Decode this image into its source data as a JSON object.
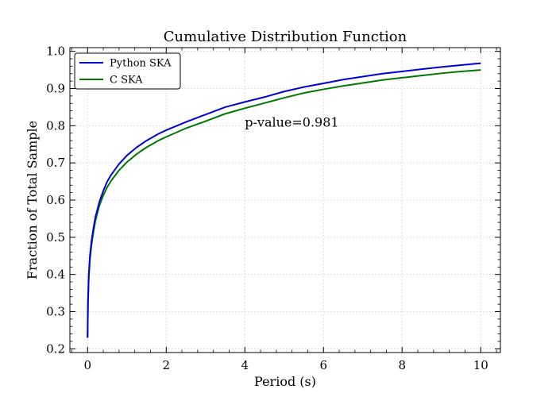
{
  "chart_data": {
    "type": "line",
    "title": "Cumulative Distribution Function",
    "xlabel": "Period (s)",
    "ylabel": "Fraction of Total Sample",
    "xlim": [
      -0.45,
      10.5
    ],
    "ylim": [
      0.19,
      1.01
    ],
    "xticks": [
      0,
      2,
      4,
      6,
      8,
      10
    ],
    "yticks": [
      0.2,
      0.3,
      0.4,
      0.5,
      0.6,
      0.7,
      0.8,
      0.9,
      1.0
    ],
    "xtick_labels": [
      "0",
      "2",
      "4",
      "6",
      "8",
      "10"
    ],
    "ytick_labels": [
      "0.2",
      "0.3",
      "0.4",
      "0.5",
      "0.6",
      "0.7",
      "0.8",
      "0.9",
      "1.0"
    ],
    "grid": true,
    "legend_position": "top-left",
    "annotation": {
      "text": "p-value=0.981",
      "x": 4.0,
      "y": 0.8
    },
    "series": [
      {
        "name": "Python SKA",
        "color": "#0000dd",
        "x": [
          0.0,
          0.01,
          0.03,
          0.06,
          0.1,
          0.15,
          0.2,
          0.3,
          0.4,
          0.5,
          0.6,
          0.8,
          1.0,
          1.25,
          1.5,
          1.8,
          2.0,
          2.5,
          3.0,
          3.5,
          4.0,
          4.5,
          5.0,
          5.5,
          6.0,
          6.5,
          7.0,
          7.5,
          8.0,
          8.5,
          9.0,
          9.5,
          10.0
        ],
        "y": [
          0.23,
          0.33,
          0.4,
          0.45,
          0.49,
          0.525,
          0.555,
          0.595,
          0.625,
          0.65,
          0.668,
          0.697,
          0.72,
          0.742,
          0.76,
          0.778,
          0.788,
          0.81,
          0.83,
          0.85,
          0.864,
          0.877,
          0.892,
          0.904,
          0.914,
          0.924,
          0.932,
          0.94,
          0.946,
          0.952,
          0.958,
          0.963,
          0.968
        ]
      },
      {
        "name": "C SKA",
        "color": "#007700",
        "x": [
          0.0,
          0.01,
          0.03,
          0.06,
          0.1,
          0.15,
          0.2,
          0.3,
          0.4,
          0.5,
          0.6,
          0.8,
          1.0,
          1.25,
          1.5,
          1.8,
          2.0,
          2.5,
          3.0,
          3.5,
          4.0,
          4.5,
          5.0,
          5.5,
          6.0,
          6.5,
          7.0,
          7.5,
          8.0,
          8.5,
          9.0,
          9.5,
          10.0
        ],
        "y": [
          0.23,
          0.32,
          0.39,
          0.44,
          0.48,
          0.515,
          0.545,
          0.585,
          0.613,
          0.635,
          0.652,
          0.68,
          0.702,
          0.724,
          0.742,
          0.76,
          0.77,
          0.793,
          0.812,
          0.832,
          0.847,
          0.861,
          0.875,
          0.888,
          0.898,
          0.907,
          0.915,
          0.923,
          0.929,
          0.935,
          0.941,
          0.946,
          0.95
        ]
      }
    ]
  }
}
